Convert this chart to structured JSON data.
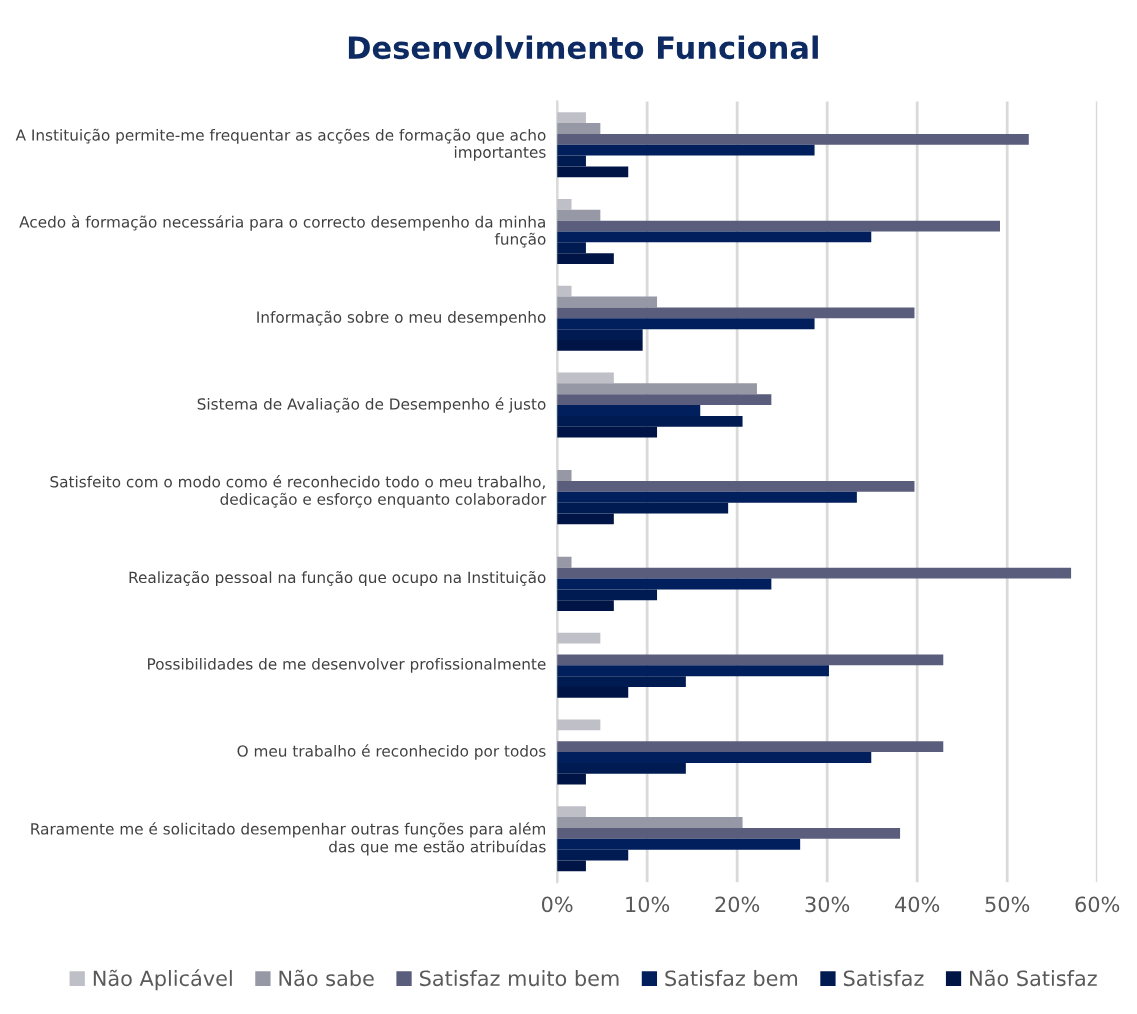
{
  "chart_data": {
    "type": "bar",
    "orientation": "horizontal",
    "title": "Desenvolvimento Funcional",
    "categories": [
      "A Instituição permite-me frequentar as acções de formação que acho importantes",
      "Acedo à formação necessária para o correcto desempenho da minha função",
      "Informação sobre o meu desempenho",
      "Sistema de Avaliação de Desempenho é justo",
      "Satisfeito com o modo como é reconhecido todo o meu trabalho, dedicação e esforço enquanto colaborador",
      "Realização pessoal na função que ocupo na Instituição",
      "Possibilidades de me desenvolver profissionalmente",
      "O meu trabalho é reconhecido por todos",
      "Raramente me é solicitado desempenhar outras funções para além das que me estão atribuídas"
    ],
    "series": [
      {
        "name": "Não Aplicável",
        "color": "#bfbfc8",
        "values": [
          3.2,
          1.6,
          1.6,
          6.3,
          0,
          0,
          4.8,
          4.8,
          3.2
        ]
      },
      {
        "name": "Não sabe",
        "color": "#9698a6",
        "values": [
          4.8,
          4.8,
          11.1,
          22.2,
          1.6,
          1.6,
          0,
          0,
          20.6
        ]
      },
      {
        "name": "Satisfaz muito bem",
        "color": "#5a5e7c",
        "values": [
          52.4,
          49.2,
          39.7,
          23.8,
          39.7,
          57.1,
          42.9,
          42.9,
          38.1
        ]
      },
      {
        "name": "Satisfaz bem",
        "color": "#001f5c",
        "values": [
          28.6,
          34.9,
          28.6,
          15.9,
          33.3,
          23.8,
          30.2,
          34.9,
          27.0
        ]
      },
      {
        "name": "Satisfaz",
        "color": "#001a52",
        "values": [
          3.2,
          3.2,
          9.5,
          20.6,
          19.0,
          11.1,
          14.3,
          14.3,
          7.9
        ]
      },
      {
        "name": "Não Satisfaz",
        "color": "#001545",
        "values": [
          7.9,
          6.3,
          9.5,
          11.1,
          6.3,
          6.3,
          7.9,
          3.2,
          3.2
        ]
      }
    ],
    "xlim": [
      0,
      60
    ],
    "xticks": [
      {
        "value": 0,
        "label": "0%"
      },
      {
        "value": 10,
        "label": "10%"
      },
      {
        "value": 20,
        "label": "20%"
      },
      {
        "value": 30,
        "label": "30%"
      },
      {
        "value": 40,
        "label": "40%"
      },
      {
        "value": 50,
        "label": "50%"
      },
      {
        "value": 60,
        "label": "60%"
      }
    ],
    "grid": "x",
    "legend": "bottom"
  }
}
